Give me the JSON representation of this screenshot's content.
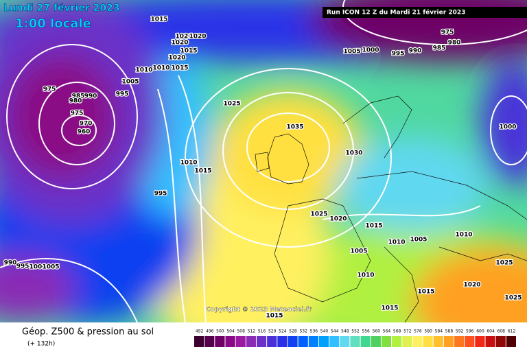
{
  "header": {
    "date": "Lundi 27 février 2023",
    "time": "1:00 locale",
    "run": "Run ICON 12 Z du Mardi 21 février 2023"
  },
  "copyright": "Copyright © 2023 Meteociel.fr",
  "footer": {
    "title": "Géop. Z500 & pression au sol",
    "subtitle": "(+ 132h)"
  },
  "legend": {
    "levels": [
      492,
      496,
      500,
      504,
      508,
      512,
      516,
      520,
      524,
      528,
      532,
      536,
      540,
      544,
      548,
      552,
      556,
      560,
      564,
      568,
      572,
      576,
      580,
      584,
      588,
      592,
      596,
      600,
      604,
      608,
      612
    ],
    "colors": [
      "#3a0030",
      "#55004a",
      "#6e0066",
      "#8a0a85",
      "#9a1aa0",
      "#8a2ab5",
      "#6a30c8",
      "#4a30d8",
      "#2a30e8",
      "#1040f0",
      "#0060ff",
      "#0080ff",
      "#00a0ff",
      "#30c0ff",
      "#60d8f0",
      "#60e0c0",
      "#40d890",
      "#50d060",
      "#80e040",
      "#b0f040",
      "#e0f050",
      "#fff060",
      "#ffe040",
      "#ffc030",
      "#ffa020",
      "#ff7820",
      "#ff5020",
      "#f02818",
      "#c81010",
      "#900808",
      "#500000"
    ]
  },
  "isobar_labels": [
    "1015",
    "1020",
    "1020",
    "1020",
    "1015",
    "1020",
    "1010",
    "1010",
    "1015",
    "1005",
    "995",
    "975",
    "985",
    "990",
    "980",
    "975",
    "970",
    "960",
    "1025",
    "1035",
    "1030",
    "1010",
    "1015",
    "995",
    "1025",
    "1020",
    "1015",
    "1005",
    "1010",
    "1010",
    "1005",
    "1010",
    "1015",
    "1015",
    "1015",
    "990",
    "995",
    "1000",
    "1005",
    "1020",
    "1025",
    "1025",
    "1000",
    "1005",
    "1000",
    "995",
    "990",
    "985",
    "980",
    "975"
  ]
}
